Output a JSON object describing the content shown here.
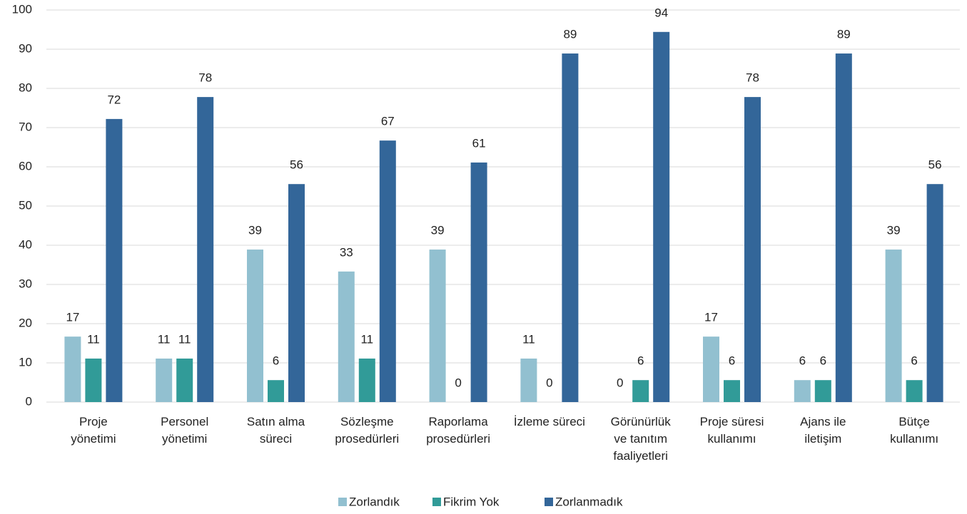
{
  "chart_data": {
    "type": "bar",
    "categories": [
      "Proje\nyönetimi",
      "Personel\nyönetimi",
      "Satın alma\nsüreci",
      "Sözleşme\nprosedürleri",
      "Raporlama\nprosedürleri",
      "İzleme süreci",
      "Görünürlük\nve tanıtım\nfaaliyetleri",
      "Proje süresi\nkullanımı",
      "Ajans ile\niletişim",
      "Bütçe\nkullanımı"
    ],
    "series": [
      {
        "name": "Zorlandık",
        "color": "#92c0d0",
        "values": [
          16.7,
          11.1,
          38.9,
          33.3,
          38.9,
          11.1,
          0,
          16.7,
          5.6,
          38.9
        ],
        "value_labels": [
          "17",
          "11",
          "39",
          "33",
          "39",
          "11",
          "0",
          "17",
          "6",
          "39"
        ]
      },
      {
        "name": "Fikrim Yok",
        "color": "#319b98",
        "values": [
          11.1,
          11.1,
          5.6,
          11.1,
          0,
          0,
          5.6,
          5.6,
          5.6,
          5.6
        ],
        "value_labels": [
          "11",
          "11",
          "6",
          "11",
          "0",
          "0",
          "6",
          "6",
          "6",
          "6"
        ]
      },
      {
        "name": "Zorlanmadık",
        "color": "#336699",
        "values": [
          72.2,
          77.8,
          55.6,
          66.7,
          61.1,
          88.9,
          94.4,
          77.8,
          88.9,
          55.6
        ],
        "value_labels": [
          "72",
          "78",
          "56",
          "67",
          "61",
          "89",
          "94",
          "78",
          "89",
          "56"
        ]
      }
    ],
    "ylim": [
      0,
      100
    ],
    "yticks": [
      0,
      10,
      20,
      30,
      40,
      50,
      60,
      70,
      80,
      90,
      100
    ],
    "grid": true,
    "legend": "bottom"
  }
}
